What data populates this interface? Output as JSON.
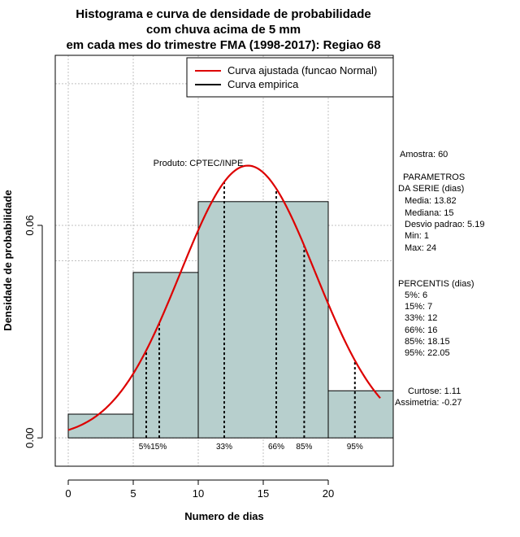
{
  "chart_data": {
    "type": "bar",
    "title": [
      "Histograma e curva de densidade de probabilidade",
      "com chuva acima de 5 mm",
      "em cada mes do trimestre FMA (1998-2017): Regiao 68"
    ],
    "xlabel": "Numero de dias",
    "ylabel": "Densidade de probabilidade",
    "xlim": [
      -1,
      25
    ],
    "ylim": [
      -0.008,
      0.108
    ],
    "x_ticks": [
      0,
      5,
      10,
      15,
      20
    ],
    "x_tick_labels": [
      "0",
      "5",
      "10",
      "15",
      "20"
    ],
    "y_ticks": [
      0.0,
      0.06
    ],
    "y_tick_labels": [
      "0.00",
      "0.06"
    ],
    "grid_x": [
      0,
      5,
      10,
      15,
      20
    ],
    "grid_y": [
      0.0,
      0.06,
      0.1,
      0.05
    ],
    "bins": [
      {
        "x0": 0,
        "x1": 5,
        "density": 0.0067
      },
      {
        "x0": 5,
        "x1": 10,
        "density": 0.0467
      },
      {
        "x0": 10,
        "x1": 20,
        "density": 0.0667
      },
      {
        "x0": 20,
        "x1": 25,
        "density": 0.0133
      }
    ],
    "bar_color": "#b7cfcd",
    "normal_fit": {
      "mean": 13.82,
      "sd": 5.19,
      "x_range": [
        0,
        24
      ],
      "color": "#dd0000"
    },
    "legend": {
      "position": "top-right",
      "items": [
        {
          "label": "Curva ajustada (funcao Normal)",
          "color": "#dd0000"
        },
        {
          "label": "Curva empirica",
          "color": "#000000"
        }
      ]
    },
    "annotation": "Produto: CPTEC/INPE",
    "percentiles": [
      {
        "label": "5%",
        "x": 6
      },
      {
        "label": "15%",
        "x": 7
      },
      {
        "label": "33%",
        "x": 12
      },
      {
        "label": "66%",
        "x": 16
      },
      {
        "label": "85%",
        "x": 18.15
      },
      {
        "label": "95%",
        "x": 22.05
      }
    ],
    "stats_text": {
      "amostra": "Amostra: 60",
      "parametros_header_1": "PARAMETROS",
      "parametros_header_2": "DA SERIE (dias)",
      "media": "Media: 13.82",
      "mediana": "Mediana: 15",
      "desvio": "Desvio padrao: 5.19",
      "min": "Min: 1",
      "max": "Max: 24",
      "percentis_header": "PERCENTIS (dias)",
      "p5": "5%: 6",
      "p15": "15%: 7",
      "p33": "33%: 12",
      "p66": "66%: 16",
      "p85": "85%: 18.15",
      "p95": "95%: 22.05",
      "curtose": "Curtose: 1.11",
      "assimetria": "Assimetria: -0.27"
    }
  }
}
